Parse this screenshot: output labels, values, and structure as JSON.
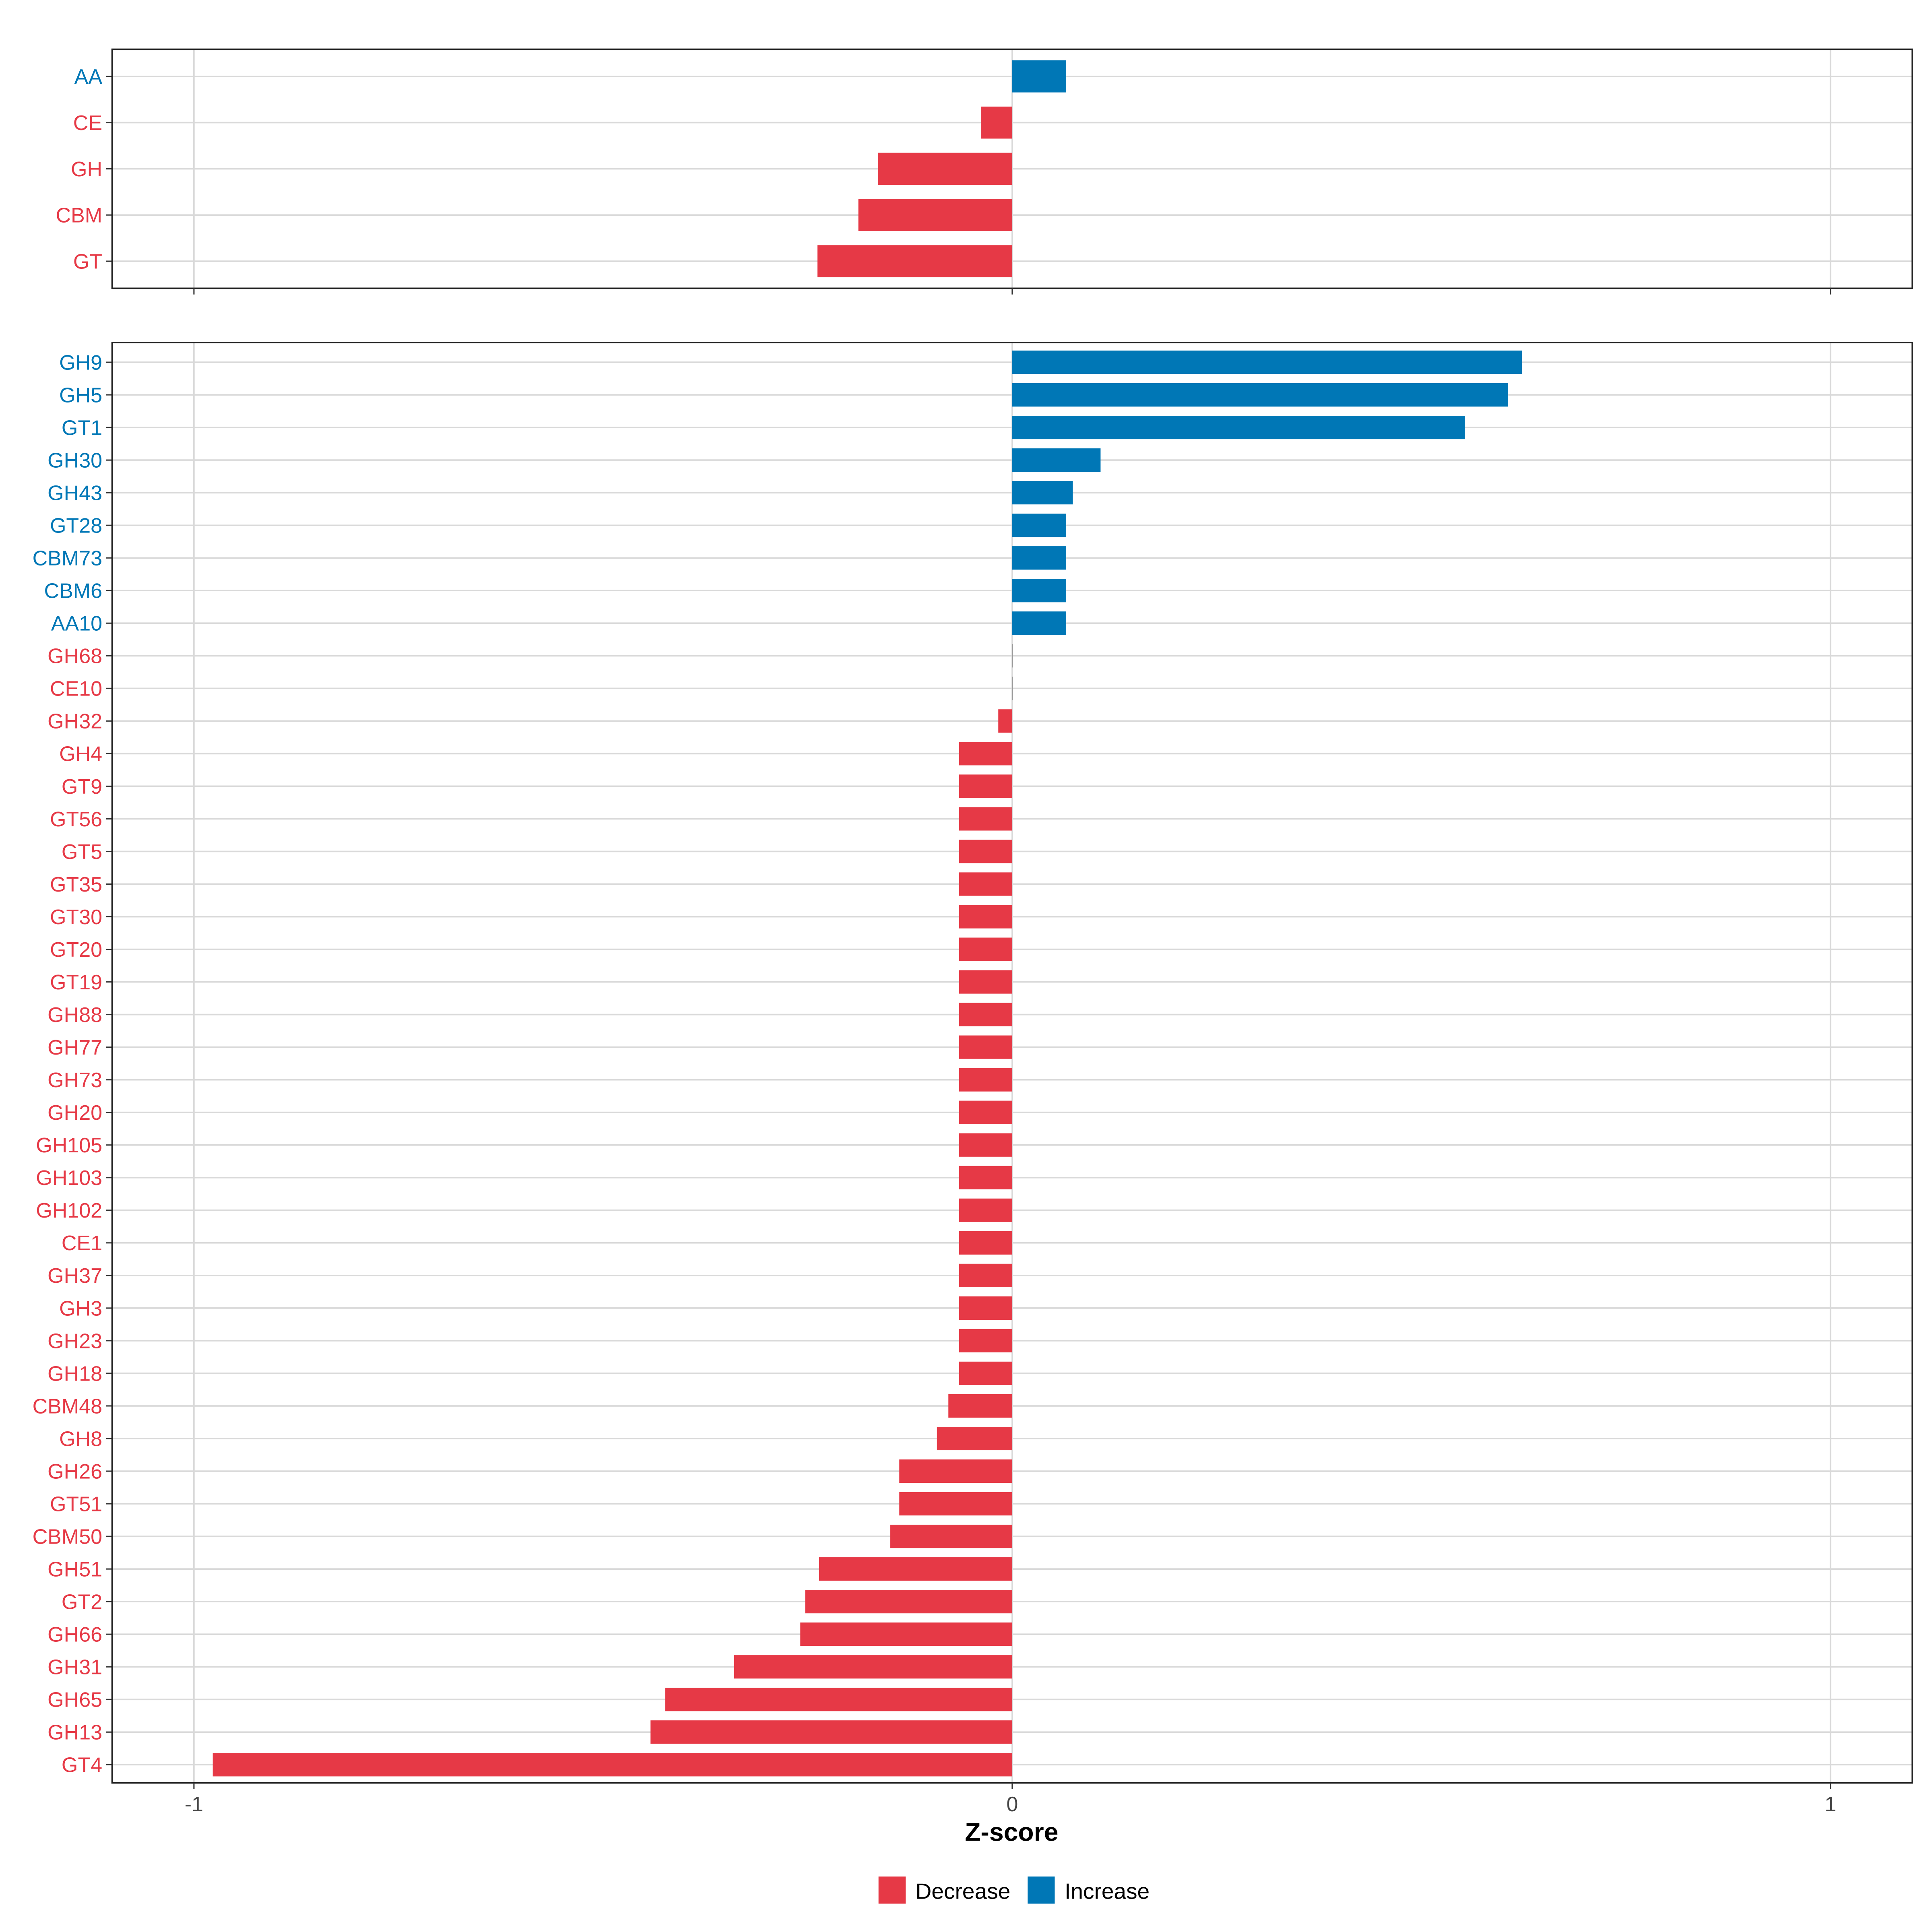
{
  "colors": {
    "Decrease": "#E63946",
    "Increase": "#0077B6",
    "grid": "#D9D9D9"
  },
  "chart_data": [
    {
      "type": "bar",
      "orientation": "horizontal",
      "panel": "top",
      "categories": [
        "AA",
        "CE",
        "GH",
        "CBM",
        "GT"
      ],
      "values": [
        0.066,
        -0.038,
        -0.164,
        -0.188,
        -0.238
      ],
      "xlim": [
        -1.1,
        1.1
      ],
      "grid": true
    },
    {
      "type": "bar",
      "orientation": "horizontal",
      "panel": "bottom",
      "categories": [
        "GH9",
        "GH5",
        "GT1",
        "GH30",
        "GH43",
        "GT28",
        "CBM73",
        "CBM6",
        "AA10",
        "GH68",
        "CE10",
        "GH32",
        "GH4",
        "GT9",
        "GT56",
        "GT5",
        "GT35",
        "GT30",
        "GT20",
        "GT19",
        "GH88",
        "GH77",
        "GH73",
        "GH20",
        "GH105",
        "GH103",
        "GH102",
        "CE1",
        "GH37",
        "GH3",
        "GH23",
        "GH18",
        "CBM48",
        "GH8",
        "GH26",
        "GT51",
        "CBM50",
        "GH51",
        "GT2",
        "GH66",
        "GH31",
        "GH65",
        "GH13",
        "GT4"
      ],
      "values": [
        0.623,
        0.606,
        0.553,
        0.108,
        0.074,
        0.066,
        0.066,
        0.066,
        0.066,
        0,
        0,
        -0.017,
        -0.065,
        -0.065,
        -0.065,
        -0.065,
        -0.065,
        -0.065,
        -0.065,
        -0.065,
        -0.065,
        -0.065,
        -0.065,
        -0.065,
        -0.065,
        -0.065,
        -0.065,
        -0.065,
        -0.065,
        -0.065,
        -0.065,
        -0.065,
        -0.078,
        -0.092,
        -0.138,
        -0.138,
        -0.149,
        -0.236,
        -0.253,
        -0.259,
        -0.34,
        -0.424,
        -0.442,
        -0.977
      ],
      "xlim": [
        -1.1,
        1.1
      ],
      "grid": true
    }
  ],
  "axis": {
    "xlabel": "Z-score",
    "xticks": [
      -1,
      0,
      1
    ],
    "xtick_labels": [
      "-1",
      "0",
      "1"
    ]
  },
  "legend": {
    "placement": "bottom",
    "entries": [
      "Decrease",
      "Increase"
    ]
  }
}
